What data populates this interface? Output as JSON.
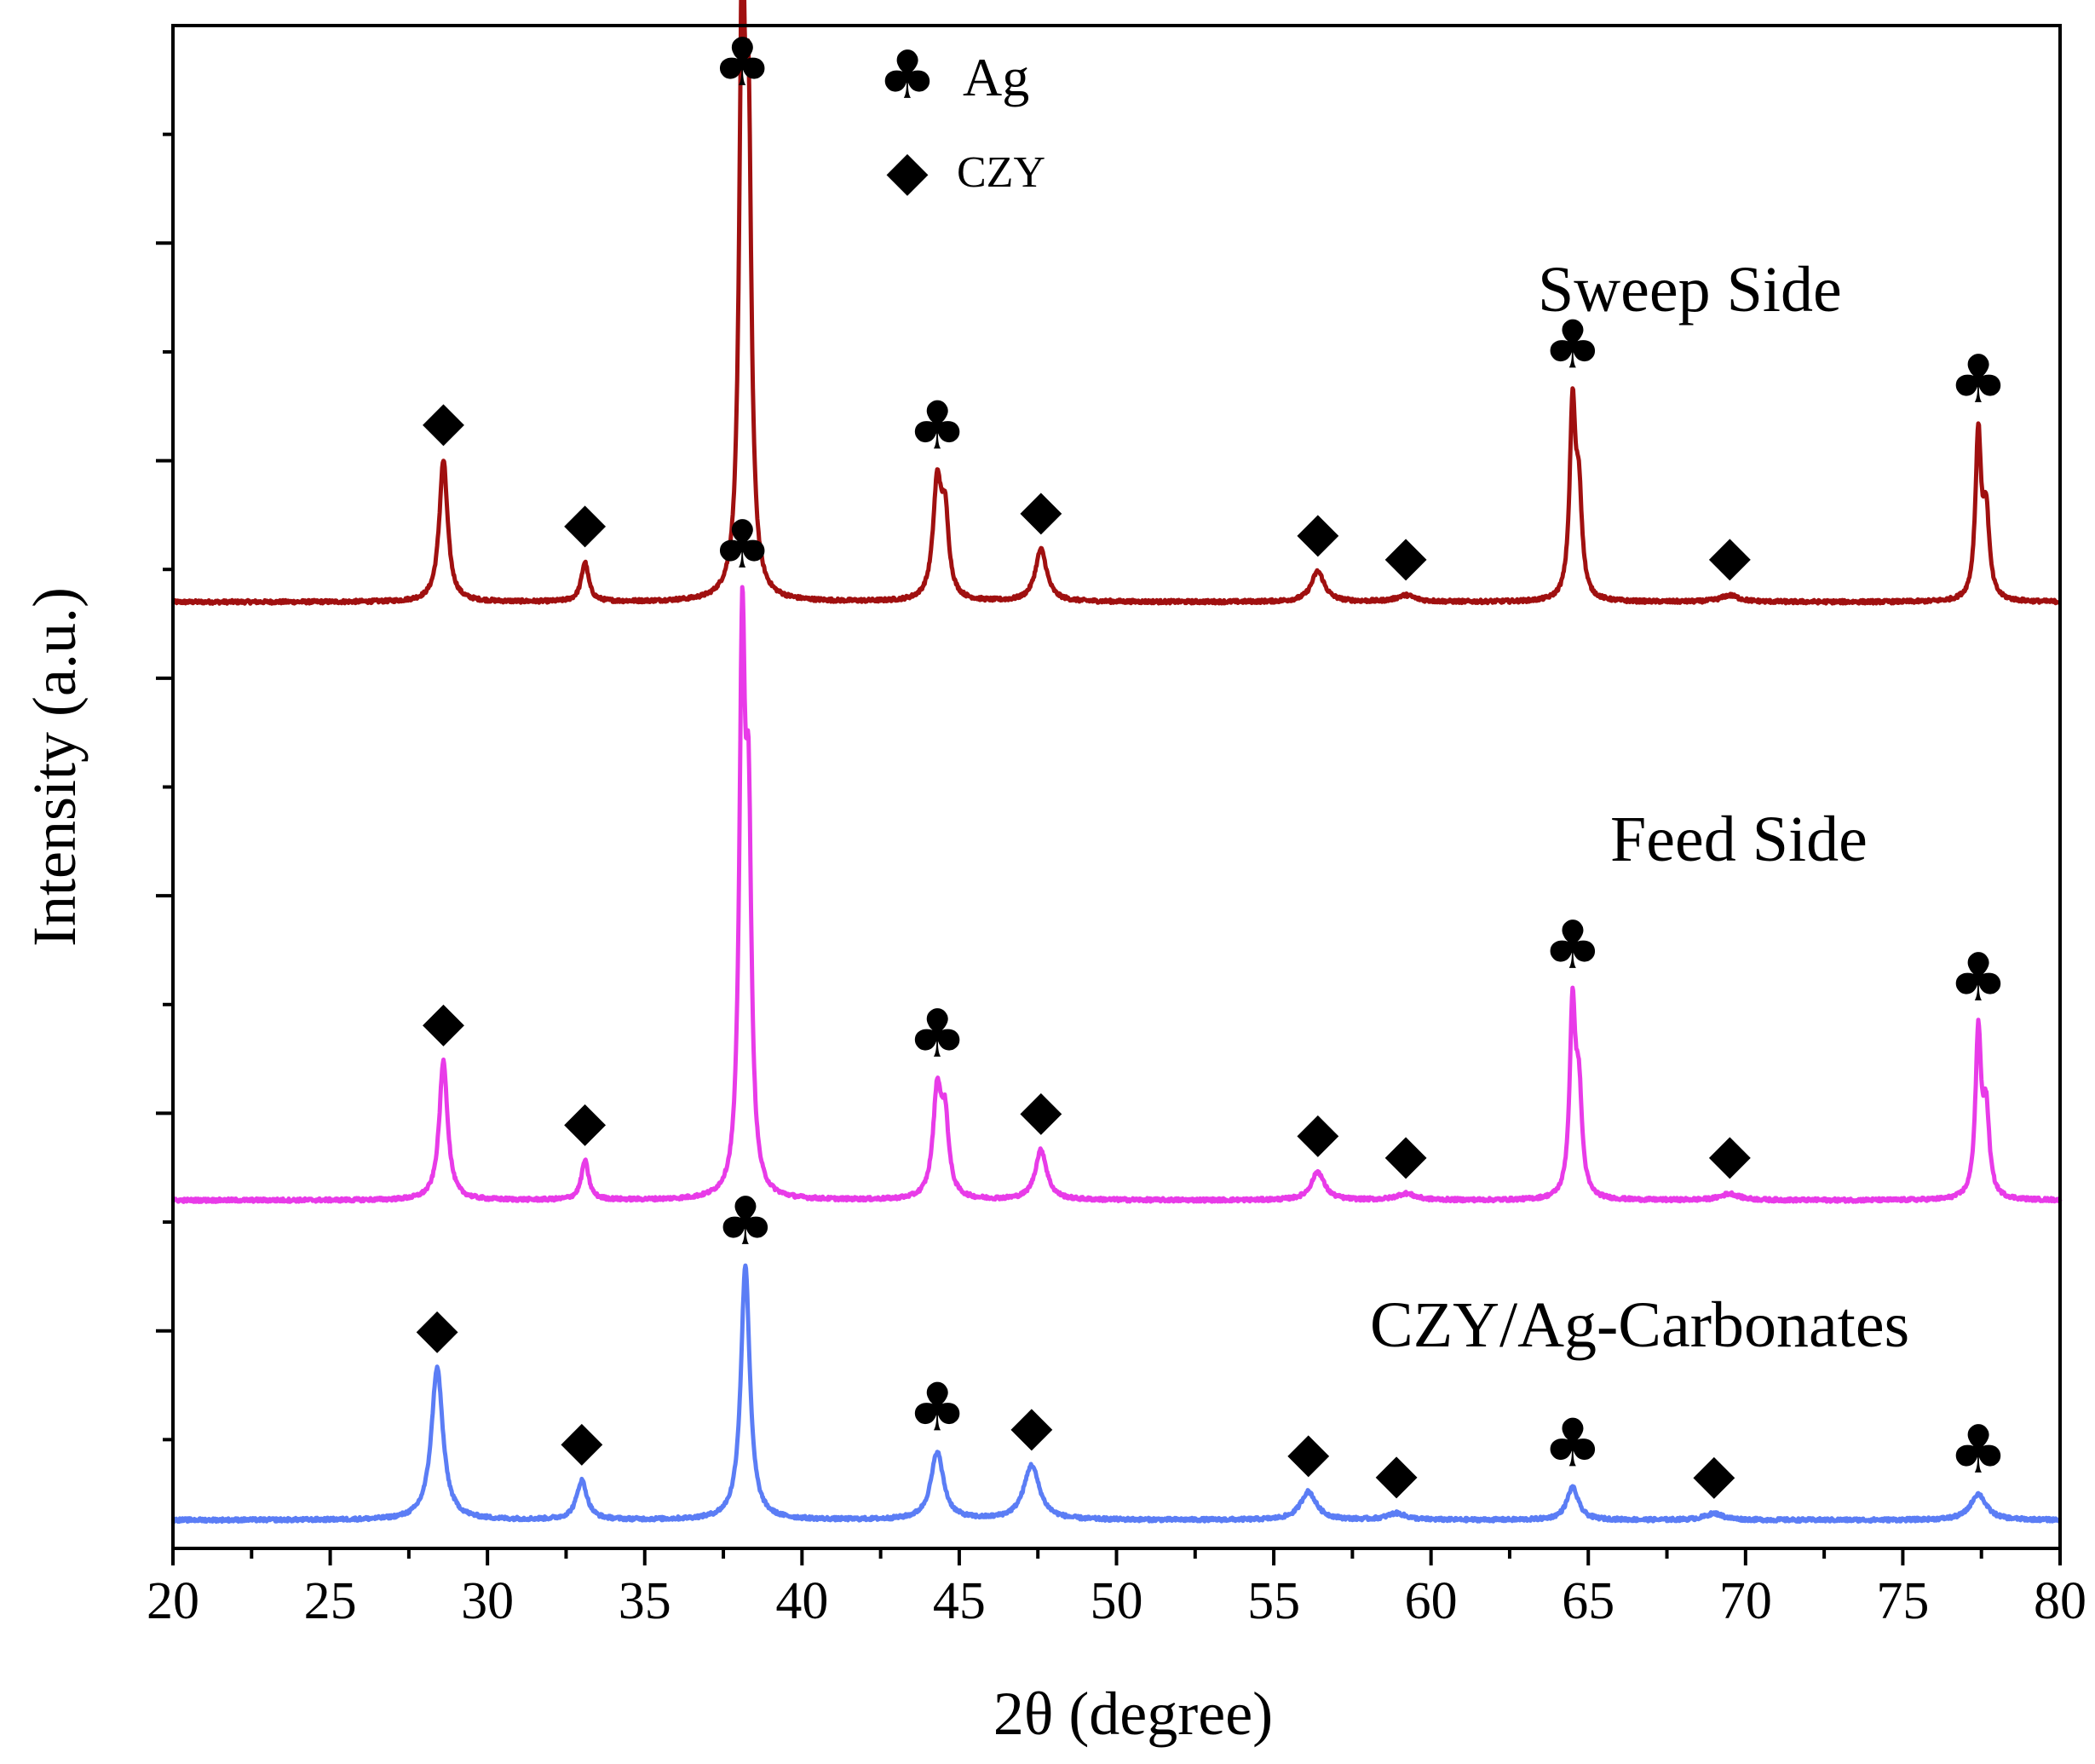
{
  "chart_data": {
    "type": "line",
    "xlabel": "2θ (degree)",
    "ylabel": "Intensity (a.u.)",
    "xlim": [
      20,
      80
    ],
    "ylim": [
      0,
      7
    ],
    "x_ticks": [
      "20",
      "25",
      "30",
      "35",
      "40",
      "45",
      "50",
      "55",
      "60",
      "65",
      "70",
      "75",
      "80"
    ],
    "y_tick_labels": "none",
    "legend": [
      {
        "symbol": "♣",
        "label": "Ag"
      },
      {
        "symbol": "◆",
        "label": "CZY"
      }
    ],
    "series": [
      {
        "name": "Sweep Side",
        "color": "#a01010",
        "baseline": 4.35,
        "noise": 0.008,
        "peaks": [
          {
            "x": 28.6,
            "height": 0.65,
            "width": 0.16,
            "phase": "CZY"
          },
          {
            "x": 33.1,
            "height": 0.18,
            "width": 0.14,
            "phase": "CZY"
          },
          {
            "x": 38.1,
            "height": 2.7,
            "width": 0.11,
            "phase": "Ag"
          },
          {
            "x": 38.3,
            "height": 1.9,
            "width": 0.11,
            "phase": ""
          },
          {
            "x": 44.3,
            "height": 0.52,
            "width": 0.16,
            "phase": "Ag"
          },
          {
            "x": 44.55,
            "height": 0.35,
            "width": 0.14,
            "phase": ""
          },
          {
            "x": 47.6,
            "height": 0.24,
            "width": 0.22,
            "phase": "CZY"
          },
          {
            "x": 56.4,
            "height": 0.14,
            "width": 0.25,
            "phase": "CZY"
          },
          {
            "x": 59.2,
            "height": 0.03,
            "width": 0.35,
            "phase": "CZY"
          },
          {
            "x": 64.5,
            "height": 0.86,
            "width": 0.11,
            "phase": "Ag"
          },
          {
            "x": 64.7,
            "height": 0.45,
            "width": 0.12,
            "phase": ""
          },
          {
            "x": 69.5,
            "height": 0.03,
            "width": 0.35,
            "phase": "CZY"
          },
          {
            "x": 77.4,
            "height": 0.75,
            "width": 0.11,
            "phase": "Ag"
          },
          {
            "x": 77.65,
            "height": 0.38,
            "width": 0.12,
            "phase": ""
          }
        ]
      },
      {
        "name": "Feed Side",
        "color": "#e83be8",
        "baseline": 1.6,
        "noise": 0.008,
        "peaks": [
          {
            "x": 28.6,
            "height": 0.64,
            "width": 0.16,
            "phase": "CZY"
          },
          {
            "x": 33.1,
            "height": 0.18,
            "width": 0.14,
            "phase": "CZY"
          },
          {
            "x": 38.1,
            "height": 2.45,
            "width": 0.11,
            "phase": "Ag"
          },
          {
            "x": 38.3,
            "height": 1.55,
            "width": 0.11,
            "phase": ""
          },
          {
            "x": 44.3,
            "height": 0.48,
            "width": 0.16,
            "phase": "Ag"
          },
          {
            "x": 44.55,
            "height": 0.33,
            "width": 0.14,
            "phase": ""
          },
          {
            "x": 47.6,
            "height": 0.23,
            "width": 0.22,
            "phase": "CZY"
          },
          {
            "x": 56.4,
            "height": 0.13,
            "width": 0.25,
            "phase": "CZY"
          },
          {
            "x": 59.2,
            "height": 0.03,
            "width": 0.35,
            "phase": "CZY"
          },
          {
            "x": 64.5,
            "height": 0.85,
            "width": 0.11,
            "phase": "Ag"
          },
          {
            "x": 64.7,
            "height": 0.45,
            "width": 0.12,
            "phase": ""
          },
          {
            "x": 69.5,
            "height": 0.03,
            "width": 0.35,
            "phase": "CZY"
          },
          {
            "x": 77.4,
            "height": 0.75,
            "width": 0.11,
            "phase": "Ag"
          },
          {
            "x": 77.65,
            "height": 0.38,
            "width": 0.12,
            "phase": ""
          }
        ]
      },
      {
        "name": "CZY/Ag-Carbonates",
        "color": "#5b7df5",
        "baseline": 0.13,
        "noise": 0.008,
        "peaks": [
          {
            "x": 28.4,
            "height": 0.7,
            "width": 0.22,
            "phase": "CZY"
          },
          {
            "x": 33.0,
            "height": 0.18,
            "width": 0.2,
            "phase": "CZY"
          },
          {
            "x": 38.2,
            "height": 1.17,
            "width": 0.17,
            "phase": "Ag"
          },
          {
            "x": 44.3,
            "height": 0.31,
            "width": 0.24,
            "phase": "Ag"
          },
          {
            "x": 47.3,
            "height": 0.25,
            "width": 0.3,
            "phase": "CZY"
          },
          {
            "x": 56.1,
            "height": 0.13,
            "width": 0.3,
            "phase": "CZY"
          },
          {
            "x": 58.9,
            "height": 0.03,
            "width": 0.35,
            "phase": "CZY"
          },
          {
            "x": 64.5,
            "height": 0.15,
            "width": 0.22,
            "phase": "Ag"
          },
          {
            "x": 69.0,
            "height": 0.03,
            "width": 0.35,
            "phase": "CZY"
          },
          {
            "x": 77.4,
            "height": 0.12,
            "width": 0.3,
            "phase": "Ag"
          }
        ]
      }
    ]
  }
}
